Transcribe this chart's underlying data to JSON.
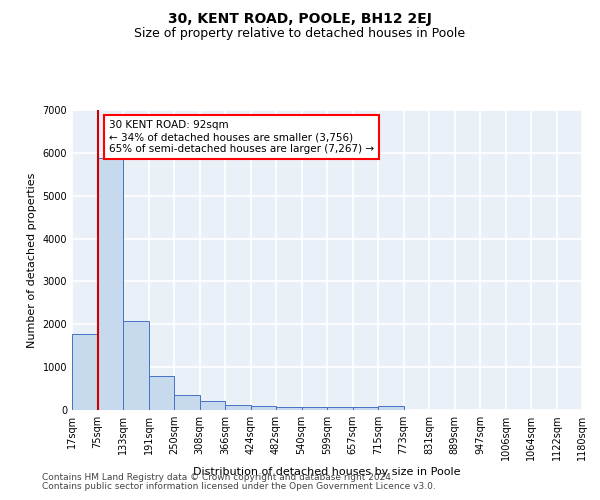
{
  "title": "30, KENT ROAD, POOLE, BH12 2EJ",
  "subtitle": "Size of property relative to detached houses in Poole",
  "xlabel": "Distribution of detached houses by size in Poole",
  "ylabel": "Number of detached properties",
  "bin_labels": [
    "17sqm",
    "75sqm",
    "133sqm",
    "191sqm",
    "250sqm",
    "308sqm",
    "366sqm",
    "424sqm",
    "482sqm",
    "540sqm",
    "599sqm",
    "657sqm",
    "715sqm",
    "773sqm",
    "831sqm",
    "889sqm",
    "947sqm",
    "1006sqm",
    "1064sqm",
    "1122sqm",
    "1180sqm"
  ],
  "bar_values": [
    1780,
    5870,
    2080,
    800,
    340,
    200,
    110,
    100,
    80,
    60,
    60,
    60,
    90,
    0,
    0,
    0,
    0,
    0,
    0,
    0
  ],
  "bar_color": "#c7d9ec",
  "bar_edge_color": "#4472c4",
  "red_line_x": 1,
  "annotation_text": "30 KENT ROAD: 92sqm\n← 34% of detached houses are smaller (3,756)\n65% of semi-detached houses are larger (7,267) →",
  "annotation_box_color": "white",
  "annotation_box_edge_color": "red",
  "red_line_color": "#cc0000",
  "ylim": [
    0,
    7000
  ],
  "yticks": [
    0,
    1000,
    2000,
    3000,
    4000,
    5000,
    6000,
    7000
  ],
  "footer1": "Contains HM Land Registry data © Crown copyright and database right 2024.",
  "footer2": "Contains public sector information licensed under the Open Government Licence v3.0.",
  "bg_color": "#eaf0f8",
  "grid_color": "white",
  "title_fontsize": 10,
  "subtitle_fontsize": 9,
  "axis_label_fontsize": 8,
  "tick_fontsize": 7,
  "annotation_fontsize": 7.5,
  "footer_fontsize": 6.5
}
